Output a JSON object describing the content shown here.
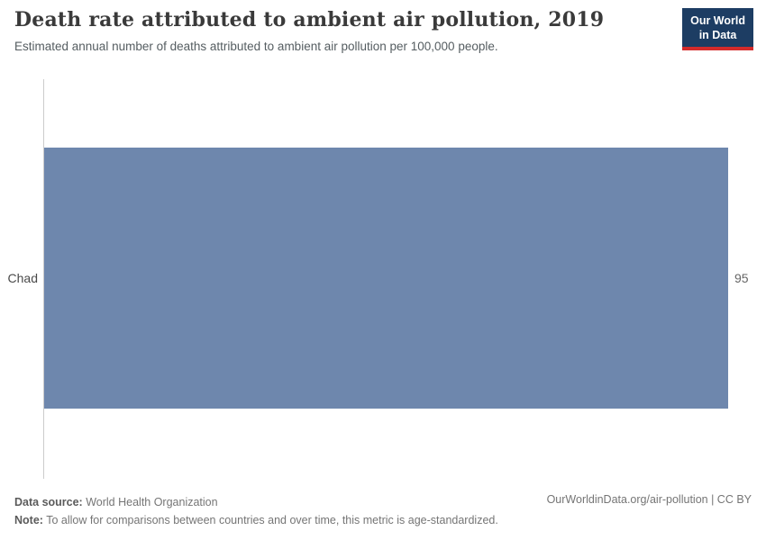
{
  "header": {
    "title": "Death rate attributed to ambient air pollution, 2019",
    "subtitle": "Estimated annual number of deaths attributed to ambient air pollution per 100,000 people."
  },
  "logo": {
    "line1": "Our World",
    "line2": "in Data",
    "bg_color": "#1d3d63",
    "accent_color": "#d42b2b"
  },
  "chart_data": {
    "type": "bar",
    "orientation": "horizontal",
    "title": "Death rate attributed to ambient air pollution, 2019",
    "categories": [
      "Chad"
    ],
    "values": [
      95
    ],
    "value_labels": [
      "95"
    ],
    "xlabel": "",
    "ylabel": "",
    "xlim": [
      0,
      95
    ],
    "grid": false,
    "legend": false,
    "bar_color": "#6e87ad",
    "axis_line_color": "#cccccc"
  },
  "footer": {
    "datasource_label": "Data source:",
    "datasource_value": "World Health Organization",
    "note_label": "Note:",
    "note_text": "To allow for comparisons between countries and over time, this metric is age-standardized.",
    "link_text": "OurWorldinData.org/air-pollution | CC BY"
  }
}
